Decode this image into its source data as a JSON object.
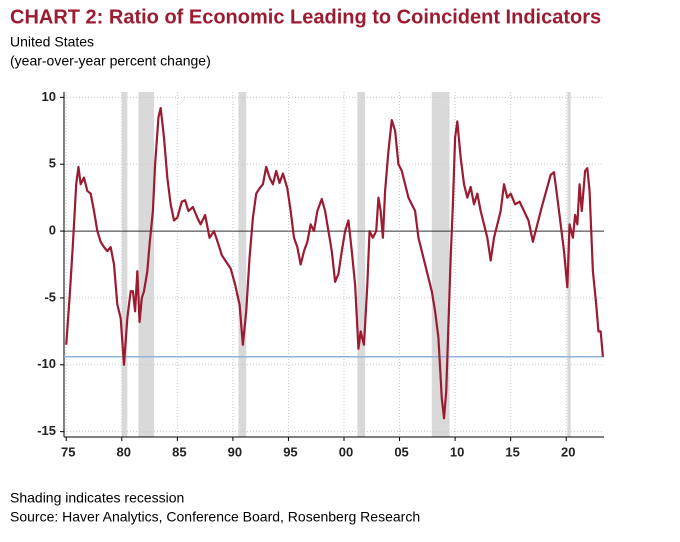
{
  "chart_data": {
    "type": "line",
    "title": "CHART 2: Ratio of Economic Leading to Coincident Indicators",
    "subtitle": [
      "United States",
      "(year-over-year percent change)"
    ],
    "notes": [
      "Shading indicates recession",
      "Source: Haver Analytics, Conference Board, Rosenberg Research"
    ],
    "color": "#9b1b30",
    "grid": true,
    "xlim": [
      1974.8,
      2023.4
    ],
    "ylim": [
      -15.4,
      10.4
    ],
    "xticks": [
      {
        "value": 1975,
        "label": "75"
      },
      {
        "value": 1980,
        "label": "80"
      },
      {
        "value": 1985,
        "label": "85"
      },
      {
        "value": 1990,
        "label": "90"
      },
      {
        "value": 1995,
        "label": "95"
      },
      {
        "value": 2000,
        "label": "00"
      },
      {
        "value": 2005,
        "label": "05"
      },
      {
        "value": 2010,
        "label": "10"
      },
      {
        "value": 2015,
        "label": "15"
      },
      {
        "value": 2020,
        "label": "20"
      }
    ],
    "yticks": [
      -15,
      -10,
      -5,
      0,
      5,
      10
    ],
    "recessions": [
      [
        1980.0,
        1980.5
      ],
      [
        1981.5,
        1982.9
      ],
      [
        1990.5,
        1991.2
      ],
      [
        2001.2,
        2001.9
      ],
      [
        2007.9,
        2009.5
      ],
      [
        2020.1,
        2020.4
      ]
    ],
    "recession_color": "#d9d9d9",
    "reference_line": -9.4,
    "reference_color": "#8fb3d9",
    "x": [
      1975.0,
      1975.3,
      1975.6,
      1975.9,
      1976.1,
      1976.3,
      1976.6,
      1976.9,
      1977.2,
      1977.5,
      1977.8,
      1978.1,
      1978.4,
      1978.7,
      1979.0,
      1979.3,
      1979.6,
      1979.9,
      1980.2,
      1980.5,
      1980.8,
      1981.0,
      1981.2,
      1981.4,
      1981.6,
      1981.8,
      1982.0,
      1982.3,
      1982.5,
      1982.8,
      1983.0,
      1983.3,
      1983.5,
      1983.8,
      1984.1,
      1984.4,
      1984.7,
      1985.0,
      1985.4,
      1985.7,
      1986.0,
      1986.4,
      1986.8,
      1987.1,
      1987.5,
      1987.9,
      1988.3,
      1988.7,
      1989.0,
      1989.4,
      1989.8,
      1990.2,
      1990.6,
      1990.9,
      1991.2,
      1991.5,
      1991.8,
      1992.1,
      1992.4,
      1992.7,
      1993.0,
      1993.3,
      1993.6,
      1993.9,
      1994.2,
      1994.5,
      1994.9,
      1995.2,
      1995.5,
      1995.8,
      1996.1,
      1996.4,
      1996.7,
      1997.0,
      1997.3,
      1997.6,
      1998.0,
      1998.3,
      1998.6,
      1998.9,
      1999.2,
      1999.5,
      1999.8,
      2000.1,
      2000.4,
      2000.7,
      2001.0,
      2001.3,
      2001.5,
      2001.8,
      2002.1,
      2002.3,
      2002.6,
      2002.9,
      2003.1,
      2003.3,
      2003.5,
      2003.7,
      2004.0,
      2004.3,
      2004.6,
      2004.9,
      2005.2,
      2005.5,
      2005.8,
      2006.1,
      2006.4,
      2006.7,
      2007.0,
      2007.3,
      2007.6,
      2007.9,
      2008.2,
      2008.5,
      2008.8,
      2009.0,
      2009.2,
      2009.4,
      2009.6,
      2009.8,
      2010.0,
      2010.2,
      2010.5,
      2010.8,
      2011.1,
      2011.4,
      2011.7,
      2012.0,
      2012.3,
      2012.6,
      2012.9,
      2013.2,
      2013.5,
      2013.8,
      2014.1,
      2014.4,
      2014.7,
      2015.0,
      2015.4,
      2015.8,
      2016.2,
      2016.6,
      2017.0,
      2017.4,
      2017.8,
      2018.2,
      2018.6,
      2018.9,
      2019.2,
      2019.5,
      2019.8,
      2020.1,
      2020.3,
      2020.6,
      2020.8,
      2021.0,
      2021.2,
      2021.4,
      2021.7,
      2021.9,
      2022.1,
      2022.4,
      2022.7,
      2022.9,
      2023.1,
      2023.3
    ],
    "values": [
      -8.5,
      -5,
      -1,
      3.5,
      4.8,
      3.5,
      4,
      3,
      2.8,
      1.5,
      0,
      -0.8,
      -1.2,
      -1.5,
      -1.2,
      -2.5,
      -5.5,
      -6.5,
      -10,
      -6.5,
      -4.5,
      -4.5,
      -6,
      -3,
      -6.8,
      -5,
      -4.5,
      -3,
      -1,
      1.5,
      5,
      8.5,
      9.2,
      7,
      4,
      2,
      0.8,
      1,
      2.2,
      2.3,
      1.5,
      1.8,
      1,
      0.5,
      1.2,
      -0.5,
      0,
      -1,
      -1.8,
      -2.3,
      -2.8,
      -4,
      -5.5,
      -8.5,
      -6,
      -2,
      1,
      2.8,
      3.2,
      3.5,
      4.8,
      4,
      3.5,
      4.5,
      3.6,
      4.3,
      3.2,
      1.5,
      -0.5,
      -1.2,
      -2.5,
      -1.5,
      -0.8,
      0.5,
      0,
      1.5,
      2.4,
      1.5,
      0,
      -1.5,
      -3.8,
      -3.2,
      -1.5,
      0,
      0.8,
      -1.5,
      -4,
      -8.8,
      -7.5,
      -8.5,
      -4,
      0,
      -0.5,
      0,
      2.5,
      1.5,
      -0.5,
      3,
      6,
      8.3,
      7.5,
      5,
      4.5,
      3.5,
      2.5,
      2,
      1.5,
      -0.5,
      -1.5,
      -2.5,
      -3.5,
      -4.5,
      -6,
      -8,
      -12.5,
      -14,
      -12,
      -7,
      -2,
      2,
      7,
      8.2,
      5.5,
      3.5,
      2.5,
      3.3,
      2,
      2.8,
      1.5,
      0.5,
      -0.5,
      -2.2,
      -0.5,
      0.5,
      1.5,
      3.5,
      2.5,
      2.8,
      2,
      2.2,
      1.5,
      0.8,
      -0.8,
      0.5,
      1.8,
      3,
      4.2,
      4.4,
      2.5,
      0.5,
      -1.5,
      -4.2,
      0.5,
      -0.5,
      1.2,
      0.5,
      3.5,
      1.5,
      4.5,
      4.7,
      3,
      -3,
      -5.5,
      -7.5,
      -7.5,
      -9.4
    ]
  }
}
